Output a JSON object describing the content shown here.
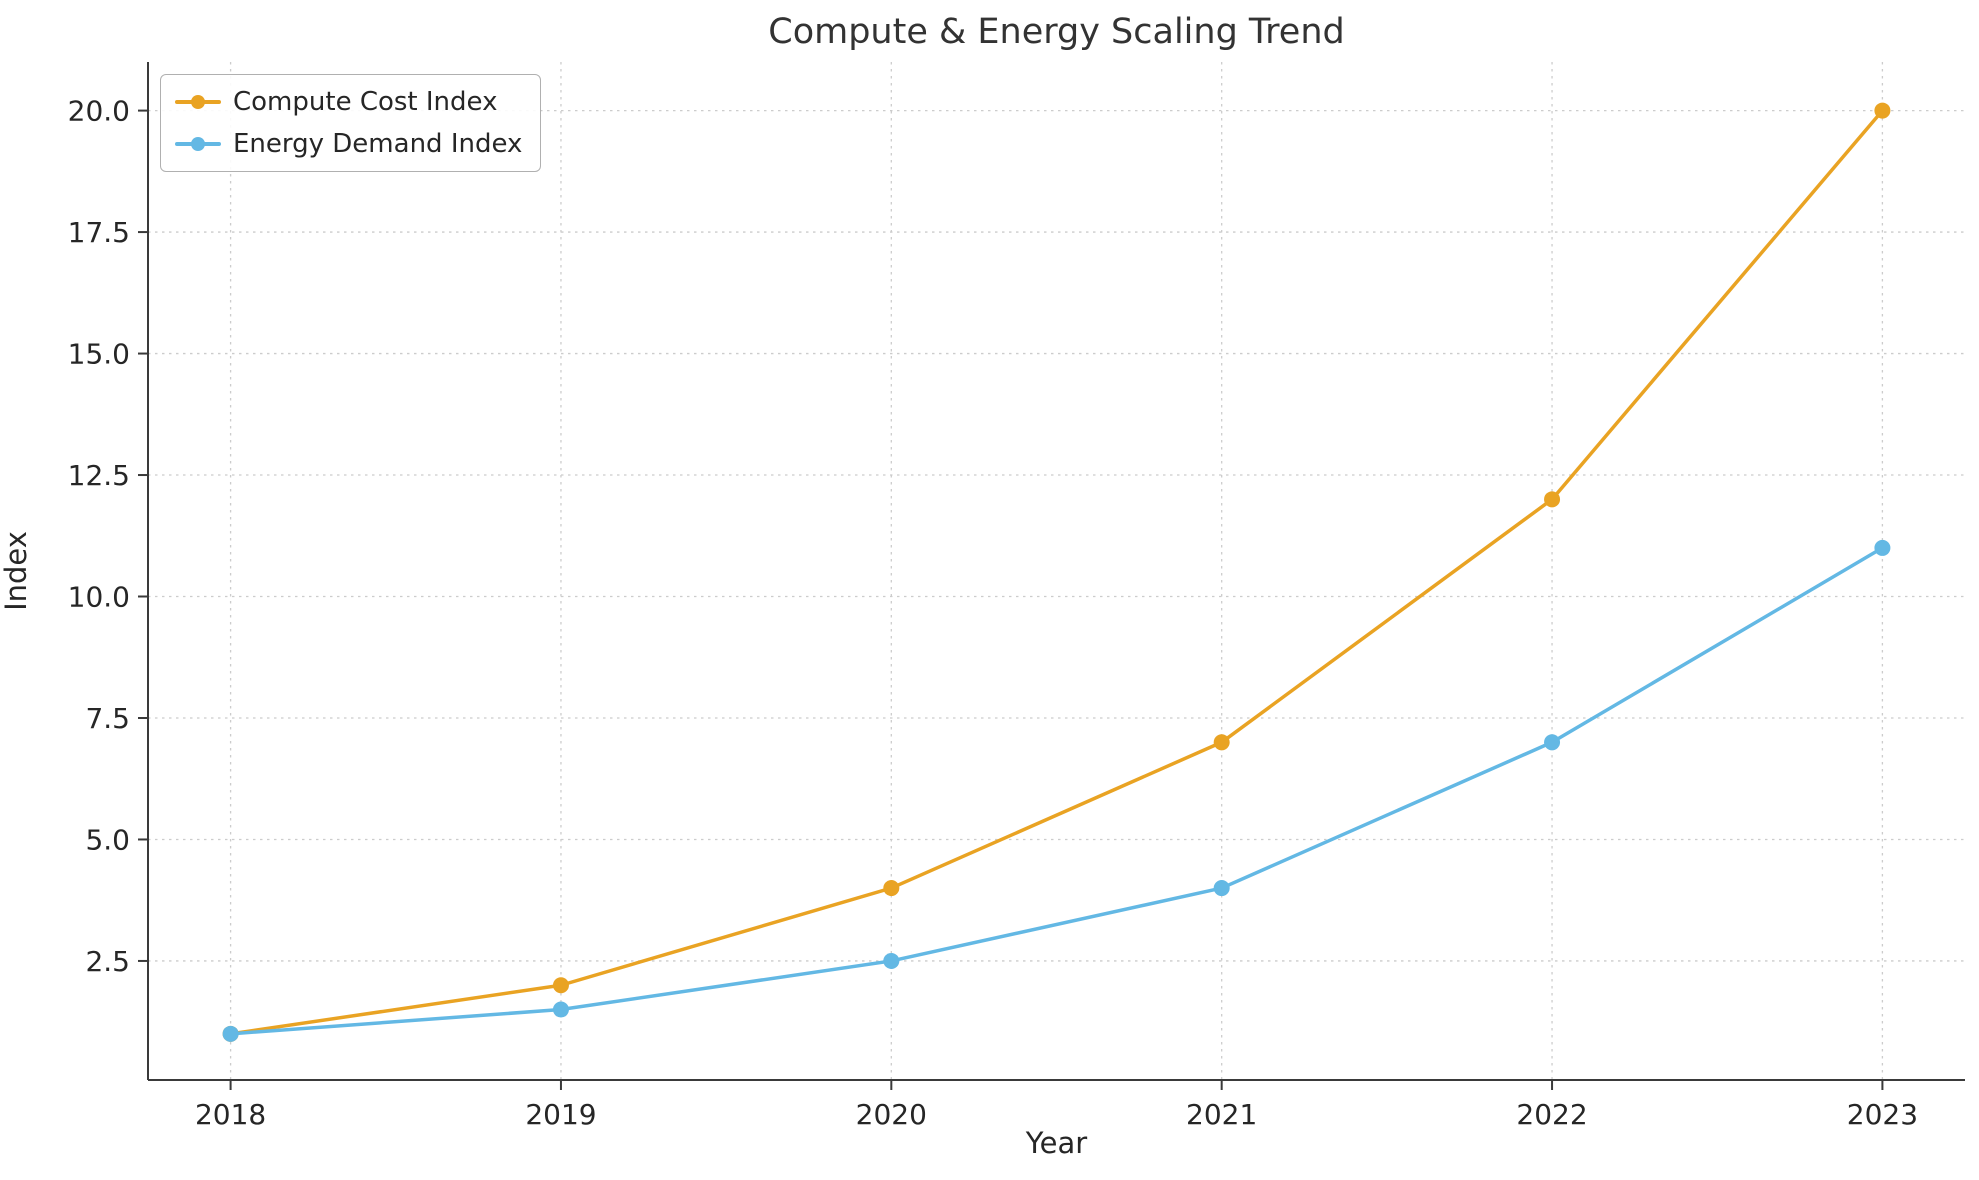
{
  "chart_data": {
    "type": "line",
    "title": "Compute & Energy Scaling Trend",
    "xlabel": "Year",
    "ylabel": "Index",
    "x": [
      2018,
      2019,
      2020,
      2021,
      2022,
      2023
    ],
    "xtick_labels": [
      "2018",
      "2019",
      "2020",
      "2021",
      "2022",
      "2023"
    ],
    "yticks": [
      2.5,
      5.0,
      7.5,
      10.0,
      12.5,
      15.0,
      17.5,
      20.0
    ],
    "ytick_labels": [
      "2.5",
      "5.0",
      "7.5",
      "10.0",
      "12.5",
      "15.0",
      "17.5",
      "20.0"
    ],
    "xlim": [
      2017.75,
      2023.25
    ],
    "ylim": [
      0.05,
      21.0
    ],
    "grid": true,
    "legend_position": "upper left",
    "series": [
      {
        "name": "Compute Cost Index",
        "color": "#E9A323",
        "values": [
          1,
          2,
          4,
          7,
          12,
          20
        ]
      },
      {
        "name": "Energy Demand Index",
        "color": "#63B8E4",
        "values": [
          1,
          1.5,
          2.5,
          4,
          7,
          11
        ]
      }
    ]
  }
}
